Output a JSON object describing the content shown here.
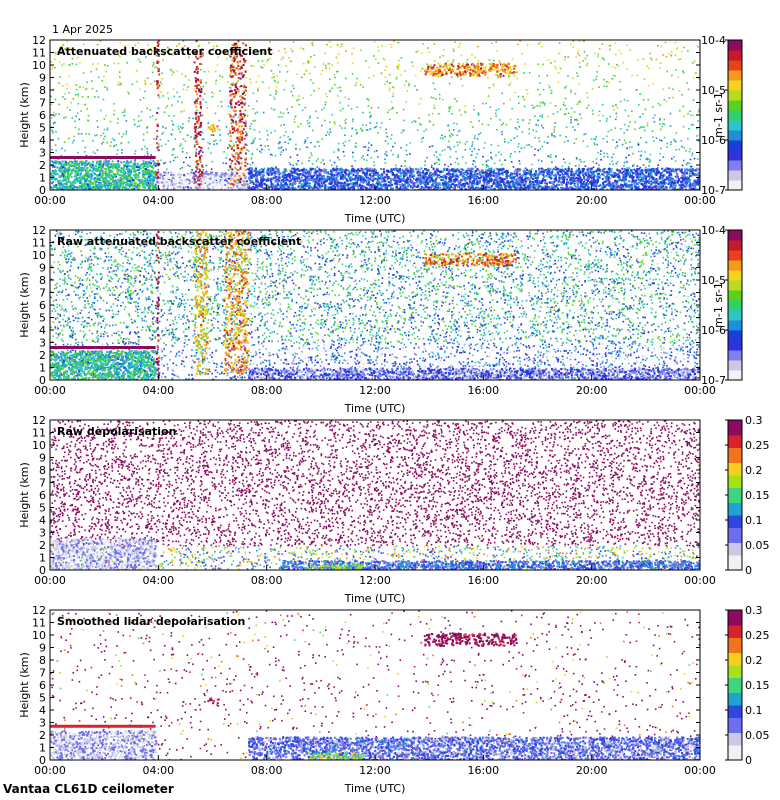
{
  "date": "1 Apr 2025",
  "footer": "Vantaa CL61D ceilometer",
  "colors": {
    "rainbow": [
      "#f2f2f2",
      "#c9c9e6",
      "#7f7ff0",
      "#3131e0",
      "#1a3fd8",
      "#1f8fd8",
      "#2bc7c7",
      "#2fcf6a",
      "#58d21e",
      "#b9db1f",
      "#f5d41b",
      "#f59a1b",
      "#e8421b",
      "#c41a2a",
      "#8c0b5e"
    ],
    "depol": [
      "#f2f2f2",
      "#c9c9e6",
      "#6d6df0",
      "#2f47e0",
      "#1fa3cf",
      "#3fd57f",
      "#a8e01c",
      "#f5cf1b",
      "#f0741b",
      "#d8222d",
      "#8c0b5e"
    ]
  },
  "chart_data": [
    {
      "type": "heatmap",
      "title": "Attenuated backscatter coefficient",
      "xlabel": "Time (UTC)",
      "ylabel": "Height (km)",
      "xticks": [
        "00:00",
        "04:00",
        "08:00",
        "12:00",
        "16:00",
        "20:00",
        "00:00"
      ],
      "xlim": [
        0,
        24
      ],
      "ylim": [
        0,
        12
      ],
      "yticks": [
        "0",
        "1",
        "2",
        "3",
        "4",
        "5",
        "6",
        "7",
        "8",
        "9",
        "10",
        "11",
        "12"
      ],
      "colorbar": {
        "scale": "log",
        "range": [
          1e-07,
          0.0001
        ],
        "ticks": [
          "10-7",
          "10-6",
          "10-5",
          "10-4"
        ],
        "unit": "m-1 sr-1"
      },
      "noise": "sparse",
      "features": [
        {
          "kind": "layer",
          "t0": 0.0,
          "t1": 3.9,
          "h0": 0.1,
          "h1": 2.4,
          "level": 0.45
        },
        {
          "kind": "line",
          "t0": 0.0,
          "t1": 3.9,
          "h": 2.6,
          "level": 0.95
        },
        {
          "kind": "layer",
          "t0": 7.3,
          "t1": 24.0,
          "h0": 0.0,
          "h1": 1.8,
          "level": 0.28
        },
        {
          "kind": "layer",
          "t0": 3.9,
          "t1": 7.3,
          "h0": 0.0,
          "h1": 1.5,
          "level": 0.08
        },
        {
          "kind": "cloud",
          "t0": 13.8,
          "t1": 17.2,
          "h0": 9.2,
          "h1": 10.2,
          "level": 0.78
        },
        {
          "kind": "cloud",
          "t0": 5.8,
          "t1": 6.2,
          "h0": 4.7,
          "h1": 5.3,
          "level": 0.72
        },
        {
          "kind": "streak",
          "t0": 3.9,
          "t1": 4.0,
          "h0": 1.0,
          "h1": 12,
          "level": 0.9
        },
        {
          "kind": "streak",
          "t0": 5.3,
          "t1": 5.6,
          "h0": 0.5,
          "h1": 12,
          "level": 0.9
        },
        {
          "kind": "streak",
          "t0": 6.6,
          "t1": 7.2,
          "h0": 0.5,
          "h1": 12,
          "level": 0.85
        }
      ]
    },
    {
      "type": "heatmap",
      "title": "Raw attenuated backscatter coefficient",
      "xlabel": "Time (UTC)",
      "ylabel": "Height (km)",
      "xticks": [
        "00:00",
        "04:00",
        "08:00",
        "12:00",
        "16:00",
        "20:00",
        "00:00"
      ],
      "xlim": [
        0,
        24
      ],
      "ylim": [
        0,
        12
      ],
      "yticks": [
        "0",
        "1",
        "2",
        "3",
        "4",
        "5",
        "6",
        "7",
        "8",
        "9",
        "10",
        "11",
        "12"
      ],
      "colorbar": {
        "scale": "log",
        "range": [
          1e-07,
          0.0001
        ],
        "ticks": [
          "10-7",
          "10-6",
          "10-5",
          "10-4"
        ],
        "unit": "m-1 sr-1"
      },
      "noise": "dense",
      "features": [
        {
          "kind": "layer",
          "t0": 0.0,
          "t1": 3.9,
          "h0": 0.1,
          "h1": 2.4,
          "level": 0.45
        },
        {
          "kind": "line",
          "t0": 0.0,
          "t1": 3.9,
          "h": 2.6,
          "level": 0.95
        },
        {
          "kind": "layer",
          "t0": 7.3,
          "t1": 24.0,
          "h0": 0.0,
          "h1": 1.0,
          "level": 0.18
        },
        {
          "kind": "cloud",
          "t0": 13.8,
          "t1": 17.2,
          "h0": 9.2,
          "h1": 10.2,
          "level": 0.78
        },
        {
          "kind": "streak",
          "t0": 3.9,
          "t1": 4.0,
          "h0": 0.0,
          "h1": 12,
          "level": 0.95
        },
        {
          "kind": "streak",
          "t0": 5.3,
          "t1": 5.8,
          "h0": 0.5,
          "h1": 12,
          "level": 0.7
        },
        {
          "kind": "streak",
          "t0": 6.4,
          "t1": 7.3,
          "h0": 0.5,
          "h1": 12,
          "level": 0.75
        }
      ]
    },
    {
      "type": "heatmap",
      "title": "Raw depolarisation",
      "xlabel": "Time (UTC)",
      "ylabel": "Height (km)",
      "xticks": [
        "00:00",
        "04:00",
        "08:00",
        "12:00",
        "16:00",
        "20:00",
        "00:00"
      ],
      "xlim": [
        0,
        24
      ],
      "ylim": [
        0,
        12
      ],
      "yticks": [
        "0",
        "1",
        "2",
        "3",
        "4",
        "5",
        "6",
        "7",
        "8",
        "9",
        "10",
        "11",
        "12"
      ],
      "colorbar": {
        "scale": "linear",
        "range": [
          0,
          0.3
        ],
        "ticks": [
          "0",
          "0.05",
          "0.1",
          "0.15",
          "0.2",
          "0.25",
          "0.3"
        ]
      },
      "noise": "depol",
      "features": [
        {
          "kind": "layer",
          "t0": 0.0,
          "t1": 3.9,
          "h0": 0.0,
          "h1": 2.6,
          "level": 0.12
        },
        {
          "kind": "layer",
          "t0": 8.5,
          "t1": 24.0,
          "h0": 0.0,
          "h1": 0.8,
          "level": 0.3
        },
        {
          "kind": "cloud",
          "t0": 9.5,
          "t1": 11.5,
          "h0": 0.0,
          "h1": 0.6,
          "level": 0.55
        }
      ]
    },
    {
      "type": "heatmap",
      "title": "Smoothed lidar depolarisation",
      "xlabel": "Time (UTC)",
      "ylabel": "Height (km)",
      "xticks": [
        "00:00",
        "04:00",
        "08:00",
        "12:00",
        "16:00",
        "20:00",
        "00:00"
      ],
      "xlim": [
        0,
        24
      ],
      "ylim": [
        0,
        12
      ],
      "yticks": [
        "0",
        "1",
        "2",
        "3",
        "4",
        "5",
        "6",
        "7",
        "8",
        "9",
        "10",
        "11",
        "12"
      ],
      "colorbar": {
        "scale": "linear",
        "range": [
          0,
          0.3
        ],
        "ticks": [
          "0",
          "0.05",
          "0.1",
          "0.15",
          "0.2",
          "0.25",
          "0.3"
        ]
      },
      "noise": "sparse-depol",
      "features": [
        {
          "kind": "layer",
          "t0": 0.0,
          "t1": 3.9,
          "h0": 0.1,
          "h1": 2.4,
          "level": 0.15
        },
        {
          "kind": "line",
          "t0": 0.0,
          "t1": 3.9,
          "h": 2.7,
          "level": 0.9
        },
        {
          "kind": "layer",
          "t0": 7.3,
          "t1": 24.0,
          "h0": 0.0,
          "h1": 1.9,
          "level": 0.25
        },
        {
          "kind": "cloud",
          "t0": 9.5,
          "t1": 11.5,
          "h0": 0.0,
          "h1": 0.7,
          "level": 0.55
        },
        {
          "kind": "cloud",
          "t0": 13.8,
          "t1": 17.2,
          "h0": 9.2,
          "h1": 10.2,
          "level": 0.98
        },
        {
          "kind": "cloud",
          "t0": 5.8,
          "t1": 6.2,
          "h0": 4.6,
          "h1": 5.0,
          "level": 0.95
        }
      ]
    }
  ]
}
